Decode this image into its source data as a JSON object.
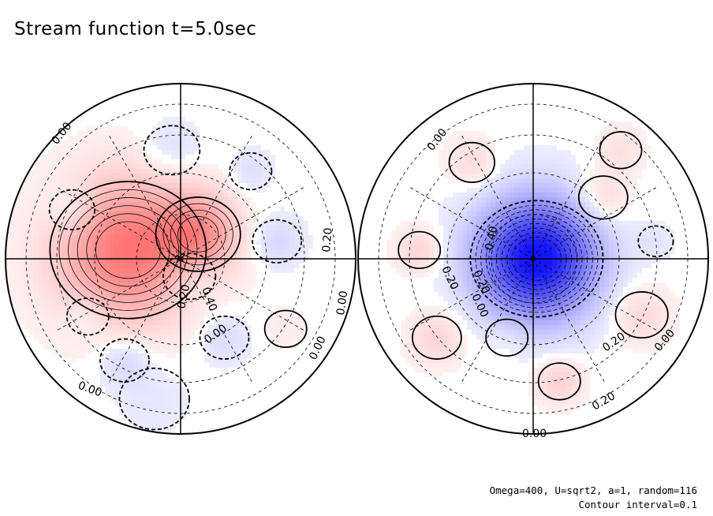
{
  "title": "Stream function t=5.0sec",
  "notes": {
    "params": "Omega=400, U=sqrt2, a=1, random=116",
    "interval": "Contour interval=0.1"
  },
  "colors": {
    "positive": "#ff4040",
    "negative": "#2020ff",
    "line": "#000000"
  },
  "chart_data": [
    {
      "type": "heatmap",
      "projection": "polar (orthographic hemisphere)",
      "title": "Stream function t=5.0sec",
      "contour_interval": 0.1,
      "field": "stream function",
      "extremum": {
        "sign": "positive",
        "approx_max": 0.6
      },
      "blobs": [
        {
          "cx": -0.3,
          "cy": 0.05,
          "r": 0.36,
          "v": 0.62
        },
        {
          "cx": 0.1,
          "cy": 0.14,
          "r": 0.2,
          "v": 0.4
        },
        {
          "cx": 0.05,
          "cy": -0.1,
          "r": 0.15,
          "v": -0.15
        },
        {
          "cx": -0.62,
          "cy": 0.28,
          "r": 0.13,
          "v": -0.14
        },
        {
          "cx": -0.32,
          "cy": -0.58,
          "r": 0.14,
          "v": -0.12
        },
        {
          "cx": 0.55,
          "cy": 0.1,
          "r": 0.14,
          "v": -0.11
        },
        {
          "cx": -0.53,
          "cy": -0.33,
          "r": 0.12,
          "v": -0.1
        },
        {
          "cx": 0.25,
          "cy": -0.45,
          "r": 0.14,
          "v": -0.1
        },
        {
          "cx": 0.4,
          "cy": 0.5,
          "r": 0.12,
          "v": -0.08
        },
        {
          "cx": -0.05,
          "cy": 0.62,
          "r": 0.16,
          "v": -0.1
        },
        {
          "cx": 0.6,
          "cy": -0.4,
          "r": 0.12,
          "v": 0.05
        },
        {
          "cx": -0.15,
          "cy": -0.8,
          "r": 0.2,
          "v": -0.05
        }
      ],
      "contour_labels": [
        "0.00",
        "0.20",
        "0.40",
        "0.20",
        "0.00",
        "0.00",
        "0.00",
        "0.00"
      ]
    },
    {
      "type": "heatmap",
      "projection": "polar (orthographic hemisphere)",
      "contour_interval": 0.1,
      "field": "stream function",
      "extremum": {
        "sign": "negative",
        "approx_min": -0.9
      },
      "blobs": [
        {
          "cx": 0.02,
          "cy": 0.0,
          "r": 0.3,
          "v": -0.95
        },
        {
          "cx": -0.55,
          "cy": -0.45,
          "r": 0.14,
          "v": 0.16
        },
        {
          "cx": 0.15,
          "cy": -0.7,
          "r": 0.12,
          "v": 0.18
        },
        {
          "cx": 0.62,
          "cy": -0.32,
          "r": 0.15,
          "v": 0.14
        },
        {
          "cx": -0.65,
          "cy": 0.05,
          "r": 0.12,
          "v": 0.16
        },
        {
          "cx": 0.4,
          "cy": 0.35,
          "r": 0.14,
          "v": 0.15
        },
        {
          "cx": -0.35,
          "cy": 0.55,
          "r": 0.13,
          "v": 0.13
        },
        {
          "cx": 0.5,
          "cy": 0.62,
          "r": 0.12,
          "v": 0.1
        },
        {
          "cx": -0.15,
          "cy": -0.45,
          "r": 0.12,
          "v": 0.05
        },
        {
          "cx": 0.7,
          "cy": 0.1,
          "r": 0.1,
          "v": -0.05
        }
      ],
      "contour_labels": [
        "0.00",
        "0.40",
        "0.20",
        "0.20",
        "0.00",
        "0.20",
        "0.00",
        "0.20",
        "0.00"
      ]
    }
  ]
}
